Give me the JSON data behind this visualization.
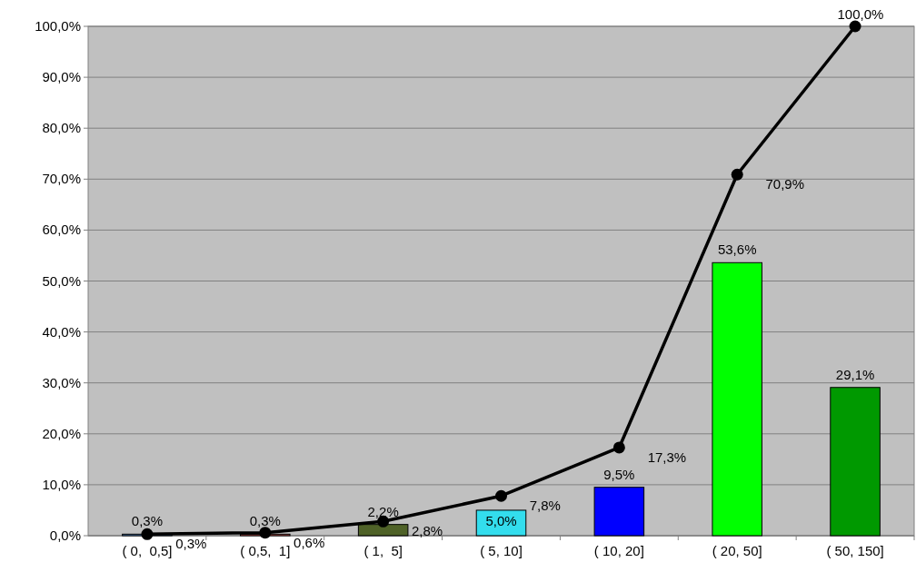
{
  "chart_data": {
    "type": "bar",
    "categories": [
      "( 0,  0,5]",
      "( 0,5,  1]",
      "( 1,  5]",
      "( 5, 10]",
      "( 10, 20]",
      "( 20, 50]",
      "( 50, 150]"
    ],
    "series": [
      {
        "colors": [
          "#4f81bd",
          "#c0504d",
          "#4f6228",
          "#33dded",
          "#0000ff",
          "#00ff00",
          "#009900"
        ],
        "values": [
          0.3,
          0.3,
          2.2,
          5.0,
          9.5,
          53.6,
          29.1
        ],
        "value_labels": [
          "0,3%",
          "0,3%",
          "2,2%",
          "5,0%",
          "9,5%",
          "53,6%",
          "29,1%"
        ]
      },
      {
        "type": "line",
        "color": "#000000",
        "values": [
          0.3,
          0.6,
          2.8,
          7.8,
          17.3,
          70.9,
          100.0
        ],
        "value_labels": [
          "0,3%",
          "0,6%",
          "2,8%",
          "7,8%",
          "17,3%",
          "70,9%",
          "100,0%"
        ]
      }
    ],
    "ylim": [
      0,
      100
    ],
    "yticks": [
      {
        "value": 0,
        "label": "0,0%"
      },
      {
        "value": 10,
        "label": "10,0%"
      },
      {
        "value": 20,
        "label": "20,0%"
      },
      {
        "value": 30,
        "label": "30,0%"
      },
      {
        "value": 40,
        "label": "40,0%"
      },
      {
        "value": 50,
        "label": "50,0%"
      },
      {
        "value": 60,
        "label": "60,0%"
      },
      {
        "value": 70,
        "label": "70,0%"
      },
      {
        "value": 80,
        "label": "80,0%"
      },
      {
        "value": 90,
        "label": "90,0%"
      },
      {
        "value": 100,
        "label": "100,0%"
      }
    ],
    "grid": "y",
    "marker": "circle",
    "line_style": "solid"
  }
}
